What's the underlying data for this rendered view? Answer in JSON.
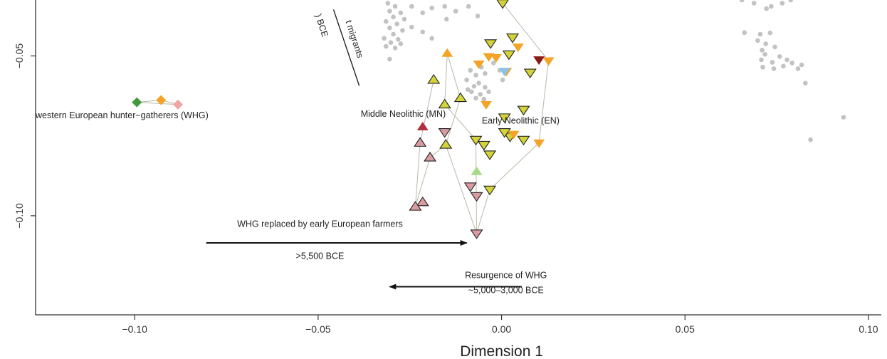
{
  "chart_data": {
    "type": "scatter",
    "xlabel": "Dimension 1",
    "ylabel": "",
    "xlim": [
      -0.127,
      0.1035
    ],
    "ylim": [
      -0.131,
      -0.0325
    ],
    "xticks": [
      -0.1,
      -0.05,
      0.0,
      0.05,
      0.1
    ],
    "xtick_labels": [
      "−0.10",
      "−0.05",
      "0.00",
      "0.05",
      "0.10"
    ],
    "yticks": [
      -0.05,
      -0.1
    ],
    "ytick_labels": [
      "−0.05",
      "−0.10"
    ],
    "colors": {
      "grey": "#c2c2c2",
      "orange": "#f3a428",
      "olive": "#d4d43a",
      "green": "#7ab73d",
      "pink": "#d99ba0",
      "red": "#b0303d",
      "darkred": "#8a1a14",
      "lightgreen": "#a8d989",
      "blue": "#8dc2e8",
      "wgreen": "#3f9a3a",
      "wpink": "#f2a4a4",
      "hull": "#b8b8a8"
    },
    "series": [
      {
        "marker": "circle",
        "color": "grey",
        "points": [
          [
            -0.031,
            -0.0335
          ],
          [
            -0.029,
            -0.0345
          ],
          [
            -0.0305,
            -0.036
          ],
          [
            -0.0275,
            -0.0365
          ],
          [
            -0.0295,
            -0.0378
          ],
          [
            -0.0265,
            -0.0385
          ],
          [
            -0.0315,
            -0.0392
          ],
          [
            -0.0285,
            -0.04
          ],
          [
            -0.0305,
            -0.0412
          ],
          [
            -0.027,
            -0.042
          ],
          [
            -0.0295,
            -0.0432
          ],
          [
            -0.032,
            -0.0445
          ],
          [
            -0.0282,
            -0.0448
          ],
          [
            -0.0302,
            -0.0458
          ],
          [
            -0.0275,
            -0.0462
          ],
          [
            -0.0315,
            -0.047
          ],
          [
            -0.029,
            -0.0475
          ],
          [
            -0.0305,
            -0.051
          ],
          [
            -0.0245,
            -0.0345
          ],
          [
            -0.0215,
            -0.0365
          ],
          [
            -0.019,
            -0.035
          ],
          [
            -0.0245,
            -0.041
          ],
          [
            -0.0215,
            -0.0425
          ],
          [
            -0.019,
            -0.0445
          ],
          [
            -0.0155,
            -0.0345
          ],
          [
            -0.0125,
            -0.036
          ],
          [
            -0.015,
            -0.0385
          ],
          [
            -0.009,
            -0.0345
          ],
          [
            -0.0065,
            -0.0375
          ],
          [
            -0.0085,
            -0.0545
          ],
          [
            -0.0055,
            -0.0535
          ],
          [
            -0.007,
            -0.056
          ],
          [
            -0.0045,
            -0.0555
          ],
          [
            -0.0095,
            -0.0575
          ],
          [
            -0.0062,
            -0.0585
          ],
          [
            -0.0075,
            -0.0595
          ],
          [
            -0.0045,
            -0.0598
          ],
          [
            -0.0092,
            -0.0605
          ],
          [
            -0.0058,
            -0.062
          ],
          [
            -0.0035,
            -0.0612
          ],
          [
            -0.007,
            -0.0632
          ],
          [
            -0.0082,
            -0.0612
          ],
          [
            -0.0048,
            -0.0635
          ],
          [
            -0.0005,
            -0.0545
          ],
          [
            0.0003,
            -0.0575
          ],
          [
            -0.0022,
            -0.0522
          ],
          [
            0.0655,
            -0.0325
          ],
          [
            0.0688,
            -0.0335
          ],
          [
            0.0722,
            -0.0352
          ],
          [
            0.0735,
            -0.0345
          ],
          [
            0.0765,
            -0.0335
          ],
          [
            0.0788,
            -0.0325
          ],
          [
            0.0662,
            -0.0427
          ],
          [
            0.0705,
            -0.0432
          ],
          [
            0.0732,
            -0.0428
          ],
          [
            0.0698,
            -0.0452
          ],
          [
            0.072,
            -0.0462
          ],
          [
            0.071,
            -0.0482
          ],
          [
            0.0745,
            -0.0472
          ],
          [
            0.0718,
            -0.0495
          ],
          [
            0.0708,
            -0.0512
          ],
          [
            0.0758,
            -0.0502
          ],
          [
            0.0738,
            -0.052
          ],
          [
            0.0778,
            -0.0512
          ],
          [
            0.0712,
            -0.0535
          ],
          [
            0.0742,
            -0.054
          ],
          [
            0.0768,
            -0.0532
          ],
          [
            0.0792,
            -0.0522
          ],
          [
            0.0808,
            -0.054
          ],
          [
            0.0818,
            -0.0528
          ],
          [
            0.0828,
            -0.0585
          ],
          [
            0.0932,
            -0.0692
          ],
          [
            0.0842,
            -0.0762
          ]
        ]
      },
      {
        "marker": "triangle-down",
        "color": "olive",
        "points": [
          [
            0.0003,
            -0.0335
          ],
          [
            -0.003,
            -0.046
          ],
          [
            0.003,
            -0.0442
          ],
          [
            0.002,
            -0.0495
          ],
          [
            0.0078,
            -0.0552
          ],
          [
            0.006,
            -0.0668
          ],
          [
            0.0008,
            -0.0692
          ],
          [
            -0.007,
            -0.0762
          ],
          [
            -0.0048,
            -0.0778
          ],
          [
            -0.0032,
            -0.0808
          ],
          [
            0.0023,
            -0.0752
          ],
          [
            0.0008,
            -0.0738
          ],
          [
            0.006,
            -0.0762
          ],
          [
            -0.0032,
            -0.0918
          ]
        ]
      },
      {
        "marker": "triangle-down",
        "color": "orange",
        "points": [
          [
            0.0045,
            -0.0472
          ],
          [
            -0.0062,
            -0.0525
          ],
          [
            -0.0035,
            -0.0502
          ],
          [
            -0.0015,
            -0.0505
          ],
          [
            0.0013,
            -0.0548
          ],
          [
            -0.0042,
            -0.0652
          ],
          [
            0.0033,
            -0.0745
          ],
          [
            0.0102,
            -0.0772
          ],
          [
            0.0128,
            -0.0515
          ]
        ]
      },
      {
        "marker": "triangle-down",
        "color": "darkred",
        "points": [
          [
            0.0102,
            -0.0512
          ]
        ]
      },
      {
        "marker": "triangle-down",
        "color": "blue",
        "points": [
          [
            0.0008,
            -0.0548
          ]
        ]
      },
      {
        "marker": "triangle-down",
        "color": "pink",
        "points": [
          [
            -0.0155,
            -0.0738
          ],
          [
            -0.0085,
            -0.0908
          ],
          [
            -0.0068,
            -0.0938
          ],
          [
            -0.0068,
            -0.1055
          ]
        ]
      },
      {
        "marker": "triangle-up",
        "color": "orange",
        "points": [
          [
            -0.0148,
            -0.0492
          ]
        ]
      },
      {
        "marker": "triangle-up",
        "color": "olive",
        "points": [
          [
            -0.0185,
            -0.0575
          ],
          [
            -0.0112,
            -0.0632
          ],
          [
            -0.0155,
            -0.0652
          ],
          [
            -0.0152,
            -0.0778
          ]
        ]
      },
      {
        "marker": "triangle-up",
        "color": "red",
        "points": [
          [
            -0.0215,
            -0.0722
          ]
        ]
      },
      {
        "marker": "triangle-up",
        "color": "pink",
        "points": [
          [
            -0.0222,
            -0.0772
          ],
          [
            -0.0195,
            -0.0818
          ],
          [
            -0.0215,
            -0.0958
          ],
          [
            -0.0235,
            -0.0972
          ]
        ]
      },
      {
        "marker": "triangle-up",
        "color": "lightgreen",
        "points": [
          [
            -0.0068,
            -0.0862
          ]
        ]
      },
      {
        "marker": "diamond",
        "color": "wgreen",
        "points": [
          [
            -0.0994,
            -0.0645
          ]
        ]
      },
      {
        "marker": "diamond",
        "color": "orange",
        "points": [
          [
            -0.0928,
            -0.0638
          ]
        ]
      },
      {
        "marker": "diamond",
        "color": "wpink",
        "points": [
          [
            -0.0882,
            -0.0652
          ]
        ]
      }
    ],
    "hulls": [
      [
        [
          0.0003,
          -0.0335
        ],
        [
          0.0128,
          -0.0515
        ],
        [
          0.0102,
          -0.0772
        ],
        [
          -0.0032,
          -0.0918
        ],
        [
          -0.0068,
          -0.1055
        ],
        [
          -0.007,
          -0.0762
        ],
        [
          -0.0155,
          -0.0652
        ],
        [
          -0.0148,
          -0.0492
        ]
      ],
      [
        [
          -0.0148,
          -0.0492
        ],
        [
          -0.0112,
          -0.0632
        ],
        [
          -0.0152,
          -0.0778
        ],
        [
          -0.0068,
          -0.1055
        ],
        [
          -0.0152,
          -0.0778
        ],
        [
          -0.0195,
          -0.0818
        ],
        [
          -0.0235,
          -0.0972
        ],
        [
          -0.0222,
          -0.0772
        ],
        [
          -0.0185,
          -0.0575
        ]
      ],
      [
        [
          -0.0994,
          -0.0645
        ],
        [
          -0.0928,
          -0.0638
        ],
        [
          -0.0882,
          -0.0652
        ],
        [
          -0.0994,
          -0.0645
        ]
      ]
    ],
    "annotations": [
      {
        "text": "western European hunter−gatherers (WHG)",
        "x": -0.127,
        "y": -0.0695,
        "anchor": "start"
      },
      {
        "text": "Middle Neolithic (MN)",
        "x": -0.0268,
        "y": -0.069,
        "anchor": "middle"
      },
      {
        "text": "Early Neolithic (EN)",
        "x": 0.0052,
        "y": -0.0712,
        "anchor": "middle"
      },
      {
        "text": "WHG replaced by early European farmers",
        "x": -0.0495,
        "y": -0.1035,
        "anchor": "middle"
      },
      {
        "text": ">5,500 BCE",
        "x": -0.0495,
        "y": -0.1135,
        "anchor": "middle"
      },
      {
        "text": "Resurgence of WHG",
        "x": 0.0012,
        "y": -0.1195,
        "anchor": "middle"
      },
      {
        "text": "~5,000–3,000 BCE",
        "x": 0.0012,
        "y": -0.1242,
        "anchor": "middle"
      }
    ],
    "rotated_annotations": [
      {
        "text": ") BCE",
        "x": -0.0508,
        "y": -0.0372,
        "angle": 72
      },
      {
        "text": "t migrants",
        "x": -0.0425,
        "y": -0.0392,
        "angle": 72
      }
    ],
    "arrows": [
      {
        "from": [
          -0.0805,
          -0.1085
        ],
        "to": [
          -0.0095,
          -0.1085
        ]
      },
      {
        "from": [
          0.0055,
          -0.1222
        ],
        "to": [
          -0.0305,
          -0.1222
        ]
      }
    ],
    "lines": [
      {
        "from": [
          -0.0388,
          -0.0593
        ],
        "to": [
          -0.0458,
          -0.0355
        ]
      }
    ]
  }
}
